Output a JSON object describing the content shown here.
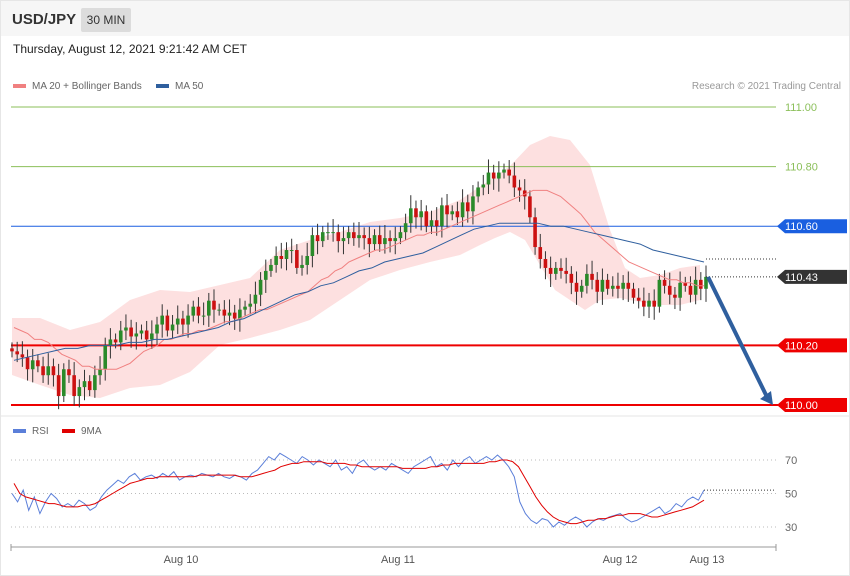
{
  "header": {
    "symbol": "USD/JPY",
    "timeframe": "30 MIN",
    "timestamp": "Thursday, August 12, 2021 9:21:42 AM CET"
  },
  "legend": {
    "items": [
      {
        "label": "MA 20 + Bollinger Bands",
        "color": "#f08080"
      },
      {
        "label": "MA 50",
        "color": "#2f5f9e"
      }
    ],
    "rsi_items": [
      {
        "label": "RSI",
        "color": "#5b7fd9"
      },
      {
        "label": "9MA",
        "color": "#e00000"
      }
    ],
    "credit": "Research © 2021 Trading Central"
  },
  "chart_data": [
    {
      "type": "candlestick",
      "panel": "price",
      "y_range": [
        109.98,
        111.02
      ],
      "x_labels": [
        "Aug 10",
        "Aug 11",
        "Aug 12",
        "Aug 13"
      ],
      "levels": [
        {
          "value": 111.0,
          "label": "111.00",
          "kind": "resistance",
          "color": "#8bbf5a"
        },
        {
          "value": 110.8,
          "label": "110.80",
          "kind": "resistance",
          "color": "#8bbf5a"
        },
        {
          "value": 110.6,
          "label": "110.60",
          "kind": "pivot",
          "color": "#1a5fe0"
        },
        {
          "value": 110.2,
          "label": "110.20",
          "kind": "support",
          "color": "#ee0000"
        },
        {
          "value": 110.0,
          "label": "110.00",
          "kind": "support",
          "color": "#ee0000"
        }
      ],
      "last_price": {
        "value": 110.43,
        "label": "110.43"
      },
      "forecast_arrow": {
        "from": 110.43,
        "to": 110.0,
        "color": "#2f5f9e"
      },
      "candles_close": [
        110.18,
        110.17,
        110.16,
        110.12,
        110.15,
        110.13,
        110.1,
        110.13,
        110.1,
        110.03,
        110.12,
        110.1,
        110.03,
        110.06,
        110.08,
        110.05,
        110.1,
        110.12,
        110.2,
        110.22,
        110.21,
        110.25,
        110.26,
        110.23,
        110.24,
        110.25,
        110.22,
        110.24,
        110.27,
        110.3,
        110.25,
        110.27,
        110.29,
        110.27,
        110.3,
        110.33,
        110.3,
        110.3,
        110.35,
        110.32,
        110.32,
        110.3,
        110.31,
        110.29,
        110.32,
        110.33,
        110.34,
        110.37,
        110.42,
        110.45,
        110.47,
        110.5,
        110.49,
        110.52,
        110.52,
        110.46,
        110.47,
        110.5,
        110.57,
        110.55,
        110.58,
        110.58,
        110.58,
        110.55,
        110.56,
        110.58,
        110.56,
        110.57,
        110.56,
        110.54,
        110.57,
        110.54,
        110.56,
        110.55,
        110.56,
        110.58,
        110.61,
        110.66,
        110.63,
        110.65,
        110.6,
        110.62,
        110.6,
        110.67,
        110.64,
        110.65,
        110.63,
        110.68,
        110.65,
        110.7,
        110.73,
        110.74,
        110.78,
        110.76,
        110.78,
        110.79,
        110.77,
        110.73,
        110.72,
        110.7,
        110.63,
        110.53,
        110.49,
        110.46,
        110.44,
        110.46,
        110.45,
        110.44,
        110.41,
        110.38,
        110.4,
        110.44,
        110.42,
        110.38,
        110.42,
        110.39,
        110.4,
        110.39,
        110.41,
        110.39,
        110.36,
        110.35,
        110.33,
        110.35,
        110.33,
        110.42,
        110.4,
        110.37,
        110.36,
        110.41,
        110.4,
        110.37,
        110.42,
        110.39,
        110.43
      ],
      "ma20": [
        110.26,
        110.25,
        110.24,
        110.22,
        110.22,
        110.21,
        110.19,
        110.17,
        110.16,
        110.15,
        110.13,
        110.13,
        110.12,
        110.12,
        110.12,
        110.12,
        110.13,
        110.14,
        110.16,
        110.18,
        110.19,
        110.2,
        110.22,
        110.22,
        110.23,
        110.24,
        110.24,
        110.25,
        110.25,
        110.26,
        110.27,
        110.28,
        110.28,
        110.29,
        110.3,
        110.31,
        110.32,
        110.32,
        110.33,
        110.34,
        110.35,
        110.36,
        110.37,
        110.38,
        110.4,
        110.42,
        110.43,
        110.45,
        110.46,
        110.48,
        110.49,
        110.5,
        110.51,
        110.52,
        110.52,
        110.53,
        110.54,
        110.55,
        110.56,
        110.57,
        110.57,
        110.58,
        110.58,
        110.59,
        110.6,
        110.61,
        110.62,
        110.63,
        110.64,
        110.65,
        110.66,
        110.67,
        110.68,
        110.69,
        110.7,
        110.71,
        110.72,
        110.72,
        110.72,
        110.71,
        110.7,
        110.68,
        110.66,
        110.64,
        110.61,
        110.58,
        110.56,
        110.54,
        110.52,
        110.5,
        110.48,
        110.47,
        110.46,
        110.45,
        110.44,
        110.43,
        110.42,
        110.42,
        110.41,
        110.41,
        110.4,
        110.4
      ],
      "ma50": [
        110.15,
        110.16,
        110.17,
        110.18,
        110.19,
        110.19,
        110.2,
        110.2,
        110.2,
        110.21,
        110.21,
        110.22,
        110.22,
        110.23,
        110.24,
        110.25,
        110.26,
        110.28,
        110.29,
        110.31,
        110.33,
        110.35,
        110.37,
        110.38,
        110.4,
        110.41,
        110.43,
        110.45,
        110.46,
        110.48,
        110.49,
        110.5,
        110.51,
        110.53,
        110.55,
        110.57,
        110.59,
        110.6,
        110.61,
        110.61,
        110.61,
        110.61,
        110.6,
        110.6,
        110.59,
        110.58,
        110.57,
        110.56,
        110.55,
        110.54,
        110.52,
        110.51,
        110.5,
        110.49,
        110.48
      ],
      "bollinger_band": {
        "upper_peak": 110.91,
        "lower_trough": 110.05
      }
    },
    {
      "type": "line",
      "panel": "RSI",
      "y_ticks": [
        70,
        50,
        30
      ],
      "series": [
        {
          "name": "RSI",
          "color": "#5b7fd9",
          "values": [
            50,
            45,
            52,
            40,
            48,
            38,
            45,
            50,
            47,
            42,
            44,
            42,
            46,
            44,
            40,
            42,
            48,
            52,
            55,
            58,
            56,
            60,
            62,
            58,
            60,
            61,
            59,
            62,
            60,
            63,
            58,
            60,
            61,
            60,
            62,
            61,
            60,
            62,
            60,
            59,
            61,
            60,
            58,
            62,
            64,
            68,
            72,
            70,
            74,
            72,
            70,
            68,
            72,
            70,
            67,
            70,
            68,
            66,
            70,
            64,
            66,
            62,
            68,
            70,
            66,
            64,
            66,
            64,
            68,
            66,
            64,
            62,
            66,
            68,
            70,
            72,
            66,
            68,
            64,
            70,
            66,
            70,
            72,
            68,
            70,
            72,
            70,
            73,
            70,
            66,
            60,
            45,
            38,
            34,
            32,
            35,
            34,
            30,
            33,
            31,
            34,
            36,
            34,
            30,
            33,
            35,
            34,
            36,
            37,
            38,
            35,
            33,
            34,
            36,
            38,
            40,
            42,
            38,
            40,
            44,
            42,
            46,
            48,
            46,
            52
          ]
        },
        {
          "name": "9MA",
          "color": "#e00000",
          "values": [
            56,
            50,
            48,
            47,
            46,
            45,
            44,
            44,
            43,
            42,
            42,
            42,
            43,
            43,
            44,
            46,
            48,
            50,
            52,
            54,
            56,
            57,
            58,
            59,
            59,
            60,
            60,
            60,
            60,
            60,
            60,
            60,
            61,
            61,
            61,
            61,
            61,
            61,
            61,
            60,
            60,
            60,
            61,
            62,
            63,
            64,
            66,
            67,
            68,
            68,
            69,
            69,
            69,
            69,
            68,
            68,
            68,
            68,
            67,
            67,
            66,
            66,
            66,
            66,
            66,
            66,
            66,
            65,
            65,
            65,
            65,
            65,
            66,
            66,
            67,
            67,
            68,
            68,
            68,
            68,
            68,
            68,
            69,
            69,
            70,
            70,
            69,
            66,
            60,
            54,
            48,
            43,
            39,
            36,
            34,
            33,
            32,
            32,
            33,
            34,
            34,
            35,
            35,
            36,
            37,
            37,
            38,
            38,
            38,
            37,
            36,
            36,
            37,
            38,
            39,
            40,
            41,
            42,
            44,
            46
          ]
        }
      ]
    }
  ]
}
